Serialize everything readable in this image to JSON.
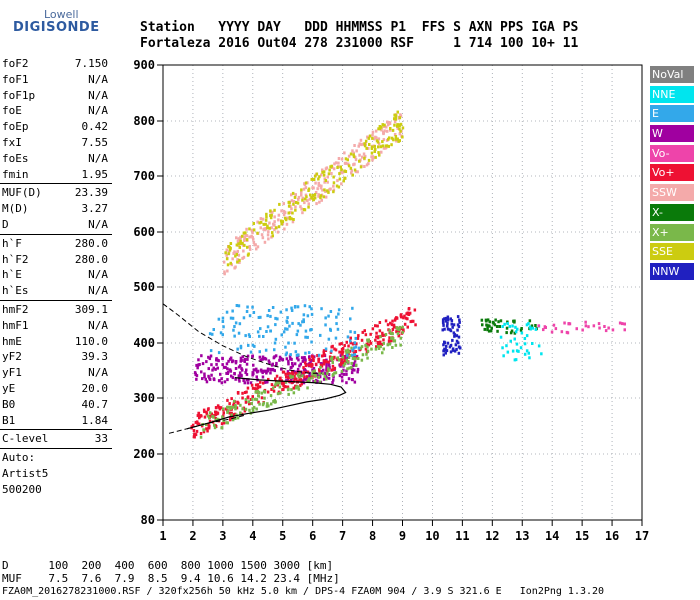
{
  "logo": {
    "top": "Lowell",
    "brand": "DIGISONDE"
  },
  "header": {
    "line1": "Station   YYYY DAY   DDD HHMMSS P1  FFS S AXN PPS IGA PS",
    "line2": "Fortaleza 2016 Out04 278 231000 RSF     1 714 100 10+ 11"
  },
  "params": {
    "group1": [
      {
        "k": "foF2",
        "v": "7.150"
      },
      {
        "k": "foF1",
        "v": "N/A"
      },
      {
        "k": "foF1p",
        "v": "N/A"
      },
      {
        "k": "foE",
        "v": "N/A"
      },
      {
        "k": "foEp",
        "v": "0.42"
      },
      {
        "k": "fxI",
        "v": "7.55"
      },
      {
        "k": "foEs",
        "v": "N/A"
      },
      {
        "k": "fmin",
        "v": "1.95"
      }
    ],
    "group2": [
      {
        "k": "MUF(D)",
        "v": "23.39"
      },
      {
        "k": "M(D)",
        "v": "3.27"
      },
      {
        "k": "D",
        "v": "N/A"
      }
    ],
    "group3": [
      {
        "k": "h`F",
        "v": "280.0"
      },
      {
        "k": "h`F2",
        "v": "280.0"
      },
      {
        "k": "h`E",
        "v": "N/A"
      },
      {
        "k": "h`Es",
        "v": "N/A"
      }
    ],
    "group4": [
      {
        "k": "hmF2",
        "v": "309.1"
      },
      {
        "k": "hmF1",
        "v": "N/A"
      },
      {
        "k": "hmE",
        "v": "110.0"
      },
      {
        "k": "yF2",
        "v": "39.3"
      },
      {
        "k": "yF1",
        "v": "N/A"
      },
      {
        "k": "yE",
        "v": "20.0"
      },
      {
        "k": "B0",
        "v": "40.7"
      },
      {
        "k": "B1",
        "v": "1.84"
      }
    ],
    "clevel": {
      "k": "C-level",
      "v": "33"
    },
    "auto_label": "Auto:",
    "artist": "Artist5",
    "version": "500200"
  },
  "footer": {
    "d_row": "D      100  200  400  600  800 1000 1500 3000 [km]",
    "muf_row": "MUF    7.5  7.6  7.9  8.5  9.4 10.6 14.2 23.4 [MHz]",
    "file_row": "FZA0M_2016278231000.RSF / 320fx256h 50 kHz 5.0 km / DPS-4 FZA0M 904 / 3.9 S 321.6 E   Ion2Png 1.3.20"
  },
  "legend": [
    {
      "label": "NoVal",
      "color": "#808080"
    },
    {
      "label": "NNE",
      "color": "#00e5ee"
    },
    {
      "label": "E",
      "color": "#33a8ea"
    },
    {
      "label": "W",
      "color": "#a000a0"
    },
    {
      "label": "Vo-",
      "color": "#ee44aa"
    },
    {
      "label": "Vo+",
      "color": "#ee1133"
    },
    {
      "label": "SSW",
      "color": "#f4aaaa"
    },
    {
      "label": "X-",
      "color": "#0a7a0a"
    },
    {
      "label": "X+",
      "color": "#7ab84a"
    },
    {
      "label": "SSE",
      "color": "#cccc10"
    },
    {
      "label": "NNW",
      "color": "#2020c0"
    }
  ],
  "chart_data": {
    "type": "scatter",
    "xlabel": "",
    "ylabel": "",
    "xlim": [
      1,
      17
    ],
    "ylim": [
      80,
      900
    ],
    "x_ticks": [
      1,
      2,
      3,
      4,
      5,
      6,
      7,
      8,
      9,
      10,
      11,
      12,
      13,
      14,
      15,
      16,
      17
    ],
    "y_ticks": [
      80,
      200,
      300,
      400,
      500,
      600,
      700,
      800,
      900
    ],
    "clusters": [
      {
        "name": "W",
        "color": "#a000a0",
        "x": [
          2.0,
          7.5
        ],
        "y": [
          330,
          380
        ],
        "n": 320
      },
      {
        "name": "Vo+",
        "color": "#ee1133",
        "x": [
          1.9,
          9.4
        ],
        "y": [
          250,
          450
        ],
        "n": 380,
        "trend": "rising"
      },
      {
        "name": "X+",
        "color": "#7ab84a",
        "x": [
          2.2,
          9.0
        ],
        "y": [
          250,
          420
        ],
        "n": 200,
        "trend": "rising"
      },
      {
        "name": "SSW",
        "color": "#f4aaaa",
        "x": [
          3.0,
          9.0
        ],
        "y": [
          550,
          800
        ],
        "n": 260,
        "trend": "rising"
      },
      {
        "name": "SSE",
        "color": "#cccc10",
        "x": [
          3.0,
          9.0
        ],
        "y": [
          550,
          800
        ],
        "n": 200,
        "trend": "rising"
      },
      {
        "name": "E",
        "color": "#33a8ea",
        "x": [
          2.5,
          7.5
        ],
        "y": [
          380,
          470
        ],
        "n": 140
      },
      {
        "name": "NNW",
        "color": "#2020c0",
        "x": [
          10.3,
          10.9
        ],
        "y": [
          380,
          450
        ],
        "n": 60
      },
      {
        "name": "X-",
        "color": "#0a7a0a",
        "x": [
          11.5,
          13.5
        ],
        "y": [
          420,
          445
        ],
        "n": 40
      },
      {
        "name": "NNE",
        "color": "#00e5ee",
        "x": [
          12.2,
          13.6
        ],
        "y": [
          370,
          440
        ],
        "n": 40
      },
      {
        "name": "Vo-",
        "color": "#ee44aa",
        "x": [
          13.5,
          16.5
        ],
        "y": [
          420,
          440
        ],
        "n": 30
      }
    ],
    "dashed_curve": [
      [
        1.0,
        470
      ],
      [
        1.5,
        450
      ],
      [
        2.2,
        420
      ],
      [
        3.0,
        395
      ],
      [
        3.8,
        375
      ],
      [
        4.6,
        360
      ],
      [
        5.3,
        350
      ],
      [
        5.9,
        345
      ],
      [
        6.3,
        345
      ]
    ],
    "dashed_curve2": [
      [
        1.2,
        237
      ],
      [
        1.8,
        245
      ],
      [
        2.5,
        255
      ],
      [
        3.2,
        262
      ],
      [
        3.8,
        270
      ]
    ],
    "solid_curve": [
      [
        1.8,
        245
      ],
      [
        2.5,
        255
      ],
      [
        3.2,
        266
      ],
      [
        3.8,
        272
      ],
      [
        4.5,
        278
      ],
      [
        5.2,
        286
      ],
      [
        5.8,
        293
      ],
      [
        6.4,
        298
      ],
      [
        6.9,
        305
      ],
      [
        7.1,
        310
      ],
      [
        6.95,
        320
      ],
      [
        6.6,
        325
      ],
      [
        6.0,
        328
      ],
      [
        5.2,
        330
      ],
      [
        4.2,
        333
      ],
      [
        3.4,
        337
      ]
    ]
  }
}
